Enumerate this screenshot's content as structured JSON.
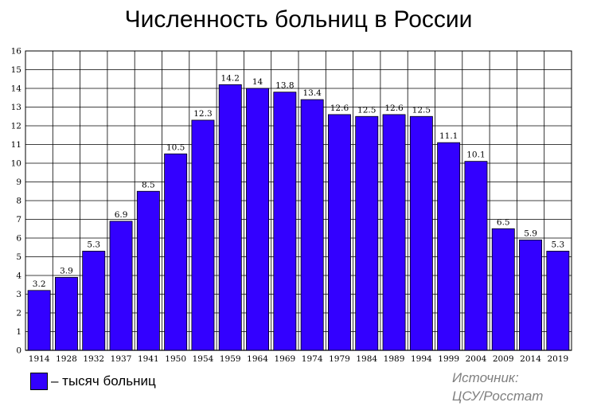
{
  "chart_data": {
    "type": "bar",
    "title": "Численность больниц в России",
    "categories": [
      "1914",
      "1928",
      "1932",
      "1937",
      "1941",
      "1950",
      "1954",
      "1959",
      "1964",
      "1969",
      "1974",
      "1979",
      "1984",
      "1989",
      "1994",
      "1999",
      "2004",
      "2009",
      "2014",
      "2019"
    ],
    "values": [
      3.2,
      3.9,
      5.3,
      6.9,
      8.5,
      10.5,
      12.3,
      14.2,
      14,
      13.8,
      13.4,
      12.6,
      12.5,
      12.6,
      12.5,
      11.1,
      10.1,
      6.5,
      5.9,
      5.3
    ],
    "value_labels": [
      "3.2",
      "3.9",
      "5.3",
      "6.9",
      "8.5",
      "10.5",
      "12.3",
      "14.2",
      "14",
      "13.8",
      "13.4",
      "12.6",
      "12.5",
      "12.6",
      "12.5",
      "11.1",
      "10.1",
      "6.5",
      "5.9",
      "5.3"
    ],
    "ylim": [
      0,
      16
    ],
    "yticks": [
      "0",
      "1",
      "2",
      "3",
      "4",
      "5",
      "6",
      "7",
      "8",
      "9",
      "10",
      "11",
      "12",
      "13",
      "14",
      "15",
      "16"
    ],
    "grid": true,
    "bar_color": "#3300ff",
    "legend": {
      "label": "– тысяч больниц",
      "placement": "bottom-left"
    }
  },
  "source": {
    "line1": "Источник:",
    "line2": "ЦСУ/Росстат"
  }
}
